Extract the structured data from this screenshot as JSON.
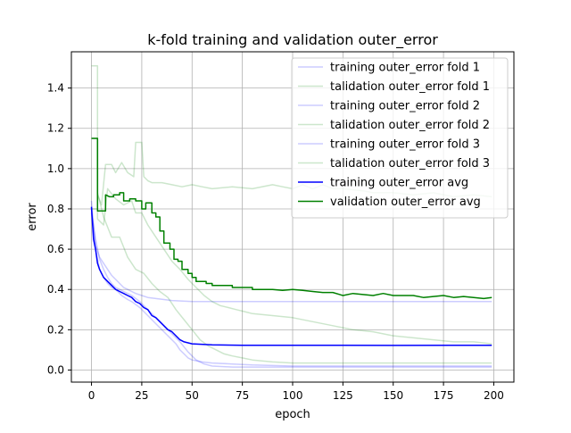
{
  "chart_data": {
    "type": "line",
    "title": "k-fold training and validation outer_error",
    "xlabel": "epoch",
    "ylabel": "error",
    "xlim": [
      -10,
      210
    ],
    "ylim": [
      -0.06,
      1.58
    ],
    "xticks": [
      0,
      25,
      50,
      75,
      100,
      125,
      150,
      175,
      200
    ],
    "yticks": [
      0.0,
      0.2,
      0.4,
      0.6,
      0.8,
      1.0,
      1.2,
      1.4
    ],
    "ytick_labels": [
      "0.0",
      "0.2",
      "0.4",
      "0.6",
      "0.8",
      "1.0",
      "1.2",
      "1.4"
    ],
    "grid": true,
    "legend_position": "upper right",
    "series": [
      {
        "name": "training outer_error fold 1",
        "color": "#0000ff",
        "opacity": 0.2,
        "linewidth": 1.5,
        "points": [
          [
            0,
            0.84
          ],
          [
            2,
            0.6
          ],
          [
            4,
            0.5
          ],
          [
            6,
            0.46
          ],
          [
            8,
            0.43
          ],
          [
            10,
            0.41
          ],
          [
            12,
            0.4
          ],
          [
            15,
            0.37
          ],
          [
            18,
            0.35
          ],
          [
            20,
            0.34
          ],
          [
            24,
            0.31
          ],
          [
            28,
            0.27
          ],
          [
            30,
            0.25
          ],
          [
            32,
            0.23
          ],
          [
            34,
            0.21
          ],
          [
            36,
            0.19
          ],
          [
            38,
            0.17
          ],
          [
            40,
            0.15
          ],
          [
            42,
            0.13
          ],
          [
            44,
            0.1
          ],
          [
            46,
            0.08
          ],
          [
            48,
            0.06
          ],
          [
            50,
            0.05
          ],
          [
            55,
            0.04
          ],
          [
            60,
            0.035
          ],
          [
            70,
            0.03
          ],
          [
            80,
            0.025
          ],
          [
            100,
            0.02
          ],
          [
            150,
            0.02
          ],
          [
            199,
            0.02
          ]
        ]
      },
      {
        "name": "talidation outer_error fold 1",
        "color": "#008000",
        "opacity": 0.2,
        "linewidth": 1.5,
        "points": [
          [
            0,
            1.51
          ],
          [
            3,
            1.51
          ],
          [
            3,
            0.88
          ],
          [
            6,
            0.76
          ],
          [
            10,
            0.66
          ],
          [
            14,
            0.66
          ],
          [
            18,
            0.56
          ],
          [
            22,
            0.5
          ],
          [
            26,
            0.48
          ],
          [
            30,
            0.43
          ],
          [
            34,
            0.39
          ],
          [
            38,
            0.36
          ],
          [
            42,
            0.3
          ],
          [
            46,
            0.25
          ],
          [
            50,
            0.2
          ],
          [
            54,
            0.15
          ],
          [
            58,
            0.12
          ],
          [
            62,
            0.1
          ],
          [
            66,
            0.08
          ],
          [
            70,
            0.07
          ],
          [
            75,
            0.06
          ],
          [
            80,
            0.05
          ],
          [
            90,
            0.04
          ],
          [
            100,
            0.035
          ],
          [
            150,
            0.035
          ],
          [
            199,
            0.035
          ]
        ]
      },
      {
        "name": "training outer_error fold 2",
        "color": "#0000ff",
        "opacity": 0.2,
        "linewidth": 1.5,
        "points": [
          [
            0,
            0.8
          ],
          [
            2,
            0.62
          ],
          [
            4,
            0.56
          ],
          [
            6,
            0.53
          ],
          [
            8,
            0.5
          ],
          [
            10,
            0.47
          ],
          [
            12,
            0.45
          ],
          [
            14,
            0.43
          ],
          [
            16,
            0.41
          ],
          [
            18,
            0.4
          ],
          [
            20,
            0.39
          ],
          [
            22,
            0.38
          ],
          [
            25,
            0.37
          ],
          [
            28,
            0.36
          ],
          [
            32,
            0.355
          ],
          [
            36,
            0.35
          ],
          [
            40,
            0.345
          ],
          [
            50,
            0.34
          ],
          [
            75,
            0.34
          ],
          [
            100,
            0.34
          ],
          [
            150,
            0.34
          ],
          [
            199,
            0.34
          ]
        ]
      },
      {
        "name": "talidation outer_error fold 2",
        "color": "#008000",
        "opacity": 0.2,
        "linewidth": 1.5,
        "points": [
          [
            0,
            1.15
          ],
          [
            3,
            1.15
          ],
          [
            3,
            0.87
          ],
          [
            5,
            0.82
          ],
          [
            7,
            1.02
          ],
          [
            10,
            1.02
          ],
          [
            12,
            0.98
          ],
          [
            15,
            1.03
          ],
          [
            18,
            0.98
          ],
          [
            21,
            0.96
          ],
          [
            22,
            1.13
          ],
          [
            25,
            1.13
          ],
          [
            26,
            0.96
          ],
          [
            28,
            0.94
          ],
          [
            30,
            0.93
          ],
          [
            35,
            0.93
          ],
          [
            40,
            0.92
          ],
          [
            45,
            0.91
          ],
          [
            50,
            0.92
          ],
          [
            55,
            0.91
          ],
          [
            60,
            0.9
          ],
          [
            70,
            0.91
          ],
          [
            80,
            0.9
          ],
          [
            90,
            0.92
          ],
          [
            95,
            0.91
          ],
          [
            100,
            0.9
          ],
          [
            105,
            0.92
          ],
          [
            110,
            0.9
          ],
          [
            115,
            0.92
          ],
          [
            120,
            0.9
          ],
          [
            125,
            0.9
          ],
          [
            135,
            0.89
          ],
          [
            140,
            0.88
          ],
          [
            150,
            0.88
          ],
          [
            160,
            0.87
          ],
          [
            170,
            0.88
          ],
          [
            180,
            0.86
          ],
          [
            190,
            0.87
          ],
          [
            199,
            0.86
          ]
        ]
      },
      {
        "name": "training outer_error fold 3",
        "color": "#0000ff",
        "opacity": 0.2,
        "linewidth": 1.5,
        "points": [
          [
            0,
            0.78
          ],
          [
            2,
            0.65
          ],
          [
            4,
            0.55
          ],
          [
            6,
            0.5
          ],
          [
            8,
            0.46
          ],
          [
            10,
            0.43
          ],
          [
            12,
            0.41
          ],
          [
            14,
            0.4
          ],
          [
            16,
            0.39
          ],
          [
            18,
            0.38
          ],
          [
            20,
            0.37
          ],
          [
            24,
            0.34
          ],
          [
            28,
            0.3
          ],
          [
            32,
            0.26
          ],
          [
            36,
            0.22
          ],
          [
            40,
            0.18
          ],
          [
            44,
            0.14
          ],
          [
            48,
            0.09
          ],
          [
            52,
            0.05
          ],
          [
            56,
            0.03
          ],
          [
            60,
            0.02
          ],
          [
            70,
            0.015
          ],
          [
            100,
            0.015
          ],
          [
            150,
            0.015
          ],
          [
            199,
            0.015
          ]
        ]
      },
      {
        "name": "talidation outer_error fold 3",
        "color": "#008000",
        "opacity": 0.2,
        "linewidth": 1.5,
        "points": [
          [
            0,
            0.8
          ],
          [
            3,
            0.8
          ],
          [
            3,
            0.75
          ],
          [
            6,
            0.72
          ],
          [
            8,
            0.9
          ],
          [
            12,
            0.85
          ],
          [
            16,
            0.82
          ],
          [
            20,
            0.84
          ],
          [
            22,
            0.78
          ],
          [
            25,
            0.78
          ],
          [
            28,
            0.72
          ],
          [
            32,
            0.66
          ],
          [
            36,
            0.6
          ],
          [
            40,
            0.54
          ],
          [
            44,
            0.5
          ],
          [
            48,
            0.45
          ],
          [
            52,
            0.41
          ],
          [
            56,
            0.37
          ],
          [
            60,
            0.34
          ],
          [
            64,
            0.32
          ],
          [
            68,
            0.31
          ],
          [
            72,
            0.3
          ],
          [
            76,
            0.29
          ],
          [
            80,
            0.28
          ],
          [
            90,
            0.27
          ],
          [
            100,
            0.26
          ],
          [
            110,
            0.24
          ],
          [
            120,
            0.22
          ],
          [
            130,
            0.2
          ],
          [
            140,
            0.19
          ],
          [
            150,
            0.17
          ],
          [
            160,
            0.16
          ],
          [
            170,
            0.15
          ],
          [
            180,
            0.14
          ],
          [
            190,
            0.14
          ],
          [
            199,
            0.13
          ]
        ]
      },
      {
        "name": "training outer_error avg",
        "color": "#0000ff",
        "opacity": 1,
        "linewidth": 1.5,
        "points": [
          [
            0,
            0.81
          ],
          [
            1,
            0.65
          ],
          [
            2,
            0.6
          ],
          [
            3,
            0.53
          ],
          [
            4,
            0.5
          ],
          [
            5,
            0.48
          ],
          [
            6,
            0.46
          ],
          [
            8,
            0.44
          ],
          [
            10,
            0.42
          ],
          [
            12,
            0.4
          ],
          [
            14,
            0.39
          ],
          [
            16,
            0.38
          ],
          [
            18,
            0.37
          ],
          [
            20,
            0.36
          ],
          [
            22,
            0.34
          ],
          [
            24,
            0.33
          ],
          [
            26,
            0.31
          ],
          [
            28,
            0.3
          ],
          [
            30,
            0.27
          ],
          [
            32,
            0.26
          ],
          [
            34,
            0.24
          ],
          [
            36,
            0.22
          ],
          [
            38,
            0.2
          ],
          [
            40,
            0.19
          ],
          [
            42,
            0.17
          ],
          [
            44,
            0.15
          ],
          [
            46,
            0.14
          ],
          [
            48,
            0.135
          ],
          [
            50,
            0.13
          ],
          [
            60,
            0.125
          ],
          [
            75,
            0.123
          ],
          [
            100,
            0.123
          ],
          [
            150,
            0.122
          ],
          [
            199,
            0.123
          ]
        ]
      },
      {
        "name": "validation outer_error avg",
        "color": "#008000",
        "opacity": 1,
        "linewidth": 1.5,
        "points": [
          [
            0,
            1.15
          ],
          [
            3,
            1.15
          ],
          [
            3,
            0.79
          ],
          [
            7,
            0.79
          ],
          [
            7,
            0.87
          ],
          [
            9,
            0.86
          ],
          [
            11,
            0.86
          ],
          [
            11,
            0.87
          ],
          [
            14,
            0.87
          ],
          [
            14,
            0.88
          ],
          [
            16,
            0.88
          ],
          [
            16,
            0.84
          ],
          [
            19,
            0.84
          ],
          [
            19,
            0.85
          ],
          [
            22,
            0.85
          ],
          [
            22,
            0.84
          ],
          [
            25,
            0.84
          ],
          [
            25,
            0.8
          ],
          [
            27,
            0.8
          ],
          [
            27,
            0.83
          ],
          [
            30,
            0.83
          ],
          [
            30,
            0.78
          ],
          [
            32,
            0.78
          ],
          [
            32,
            0.76
          ],
          [
            34,
            0.76
          ],
          [
            34,
            0.69
          ],
          [
            36,
            0.69
          ],
          [
            36,
            0.63
          ],
          [
            39,
            0.63
          ],
          [
            39,
            0.6
          ],
          [
            41,
            0.6
          ],
          [
            41,
            0.55
          ],
          [
            43,
            0.55
          ],
          [
            43,
            0.54
          ],
          [
            45,
            0.54
          ],
          [
            45,
            0.5
          ],
          [
            48,
            0.5
          ],
          [
            48,
            0.48
          ],
          [
            50,
            0.48
          ],
          [
            50,
            0.46
          ],
          [
            52,
            0.46
          ],
          [
            52,
            0.44
          ],
          [
            57,
            0.44
          ],
          [
            57,
            0.43
          ],
          [
            60,
            0.43
          ],
          [
            60,
            0.42
          ],
          [
            70,
            0.42
          ],
          [
            70,
            0.41
          ],
          [
            80,
            0.41
          ],
          [
            80,
            0.4
          ],
          [
            90,
            0.4
          ],
          [
            95,
            0.395
          ],
          [
            100,
            0.4
          ],
          [
            105,
            0.395
          ],
          [
            110,
            0.39
          ],
          [
            115,
            0.385
          ],
          [
            120,
            0.385
          ],
          [
            125,
            0.37
          ],
          [
            130,
            0.38
          ],
          [
            135,
            0.375
          ],
          [
            140,
            0.37
          ],
          [
            145,
            0.38
          ],
          [
            150,
            0.37
          ],
          [
            160,
            0.37
          ],
          [
            165,
            0.36
          ],
          [
            170,
            0.365
          ],
          [
            175,
            0.37
          ],
          [
            180,
            0.36
          ],
          [
            185,
            0.365
          ],
          [
            190,
            0.36
          ],
          [
            195,
            0.355
          ],
          [
            199,
            0.36
          ]
        ]
      }
    ]
  }
}
